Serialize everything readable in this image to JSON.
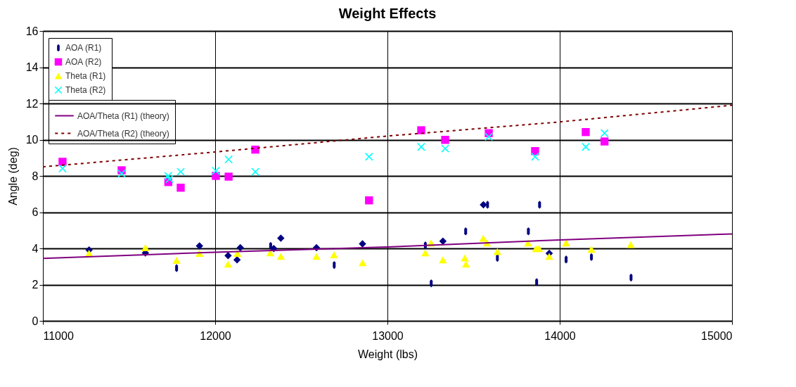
{
  "chart_data": {
    "type": "scatter",
    "title": "Weight Effects",
    "xlabel": "Weight (lbs)",
    "ylabel": "Angle (deg)",
    "xlim": [
      11000,
      15000
    ],
    "xticks": [
      11000,
      12000,
      13000,
      14000,
      15000
    ],
    "ylim": [
      0,
      16
    ],
    "yticks": [
      0,
      2,
      4,
      6,
      8,
      10,
      12,
      14,
      16
    ],
    "grid": true,
    "legend": "top left",
    "series": [
      {
        "type": "scatter",
        "marker": "diamond",
        "color": "#000080",
        "x": [
          11268,
          11595,
          11909,
          12075,
          12146,
          12127,
          12340,
          12381,
          12588,
          12855,
          13322,
          13557,
          13939
        ],
        "values": [
          3.91,
          3.75,
          4.14,
          3.6,
          4.04,
          3.37,
          3.99,
          4.56,
          4.04,
          4.25,
          4.4,
          6.41,
          3.73
        ]
      },
      {
        "type": "scatter",
        "name": "AOA (R1)",
        "color": "#000080",
        "x": [
          11776,
          12322,
          12691,
          13220,
          13254,
          13454,
          13581,
          13638,
          13818,
          13866,
          13883,
          14037,
          14184,
          14414
        ],
        "values": [
          2.91,
          4.14,
          3.08,
          4.17,
          2.07,
          4.94,
          6.41,
          3.47,
          4.94,
          2.14,
          6.41,
          3.39,
          3.52,
          2.39
        ]
      },
      {
        "type": "scatter",
        "name": "AOA (R2)",
        "marker": "square",
        "color": "#ff00ff",
        "x": [
          11114,
          11457,
          11728,
          11800,
          12004,
          12078,
          12233,
          12893,
          13196,
          13335,
          13588,
          13857,
          14151,
          14260
        ],
        "values": [
          8.78,
          8.31,
          7.66,
          7.35,
          8.0,
          7.96,
          9.45,
          6.65,
          10.52,
          9.99,
          10.36,
          9.37,
          10.42,
          9.9
        ]
      },
      {
        "type": "scatter",
        "name": "Theta (R1)",
        "marker": "triangle",
        "color": "#ffff00",
        "x": [
          11268,
          11595,
          11776,
          11909,
          12075,
          12129,
          12320,
          12381,
          12588,
          12690,
          12856,
          13220,
          13253,
          13322,
          13449,
          13456,
          13556,
          13578,
          13638,
          13816,
          13862,
          13880,
          13939,
          14037,
          14184,
          14412
        ],
        "values": [
          3.73,
          4.04,
          3.34,
          3.73,
          3.13,
          3.73,
          3.75,
          3.56,
          3.56,
          3.65,
          3.21,
          3.75,
          4.3,
          3.37,
          3.47,
          3.13,
          4.56,
          4.3,
          3.82,
          4.3,
          3.99,
          3.99,
          3.56,
          4.3,
          3.95,
          4.21
        ]
      },
      {
        "type": "scatter",
        "name": "Theta (R2)",
        "marker": "cross",
        "color": "#00ffff",
        "x": [
          11114,
          11457,
          11728,
          11735,
          11800,
          12004,
          12078,
          12233,
          12893,
          13196,
          13335,
          13588,
          13857,
          14151,
          14260
        ],
        "values": [
          8.41,
          8.13,
          8.0,
          7.83,
          8.23,
          8.28,
          8.91,
          8.23,
          9.06,
          9.6,
          9.51,
          10.16,
          9.06,
          9.6,
          10.36
        ]
      },
      {
        "type": "line",
        "name": "AOA/Theta (R1) (theory)",
        "line_style": "solid",
        "color": "#800080",
        "x": [
          11000,
          12000,
          13000,
          14000,
          15000
        ],
        "values": [
          3.45,
          3.79,
          4.08,
          4.47,
          4.8
        ]
      },
      {
        "type": "line",
        "name": "AOA/Theta (R2) (theory)",
        "line_style": "dashed",
        "color": "#800000",
        "x": [
          11000,
          12000,
          13000,
          14000,
          15000
        ],
        "values": [
          8.5,
          9.32,
          10.2,
          10.98,
          11.9
        ]
      }
    ]
  }
}
